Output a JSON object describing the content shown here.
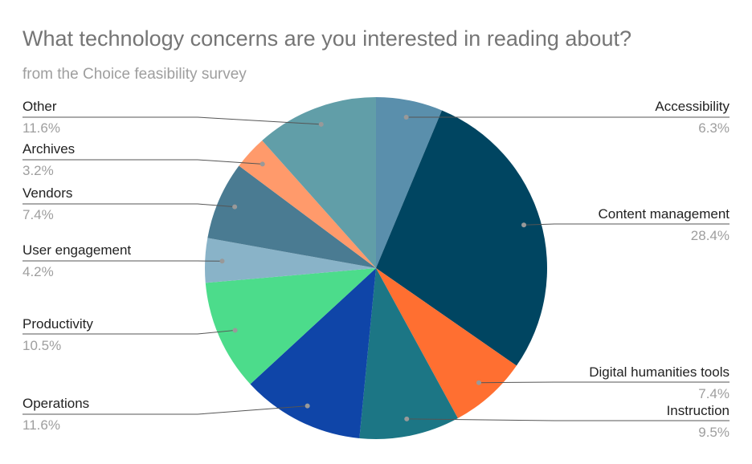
{
  "chart_data": {
    "type": "pie",
    "title": "What technology concerns are you interested in reading about?",
    "subtitle": "from the Choice feasibility survey",
    "slices": [
      {
        "label": "Accessibility",
        "value": 6.3,
        "display": "6.3%",
        "color": "#5a8fac"
      },
      {
        "label": "Content management",
        "value": 28.4,
        "display": "28.4%",
        "color": "#004561"
      },
      {
        "label": "Digital humanities tools",
        "value": 7.4,
        "display": "7.4%",
        "color": "#ff6f31"
      },
      {
        "label": "Instruction",
        "value": 9.5,
        "display": "9.5%",
        "color": "#1c7685"
      },
      {
        "label": "Operations",
        "value": 11.6,
        "display": "11.6%",
        "color": "#0f45a8"
      },
      {
        "label": "Productivity",
        "value": 10.5,
        "display": "10.5%",
        "color": "#4cdc8b"
      },
      {
        "label": "User engagement",
        "value": 4.2,
        "display": "4.2%",
        "color": "#89b3c8"
      },
      {
        "label": "Vendors",
        "value": 7.4,
        "display": "7.4%",
        "color": "#4a7b92"
      },
      {
        "label": "Archives",
        "value": 3.2,
        "display": "3.2%",
        "color": "#ff9a6b"
      },
      {
        "label": "Other",
        "value": 11.6,
        "display": "11.6%",
        "color": "#619ea8"
      }
    ],
    "start_angle": "top",
    "direction": "clockwise"
  }
}
